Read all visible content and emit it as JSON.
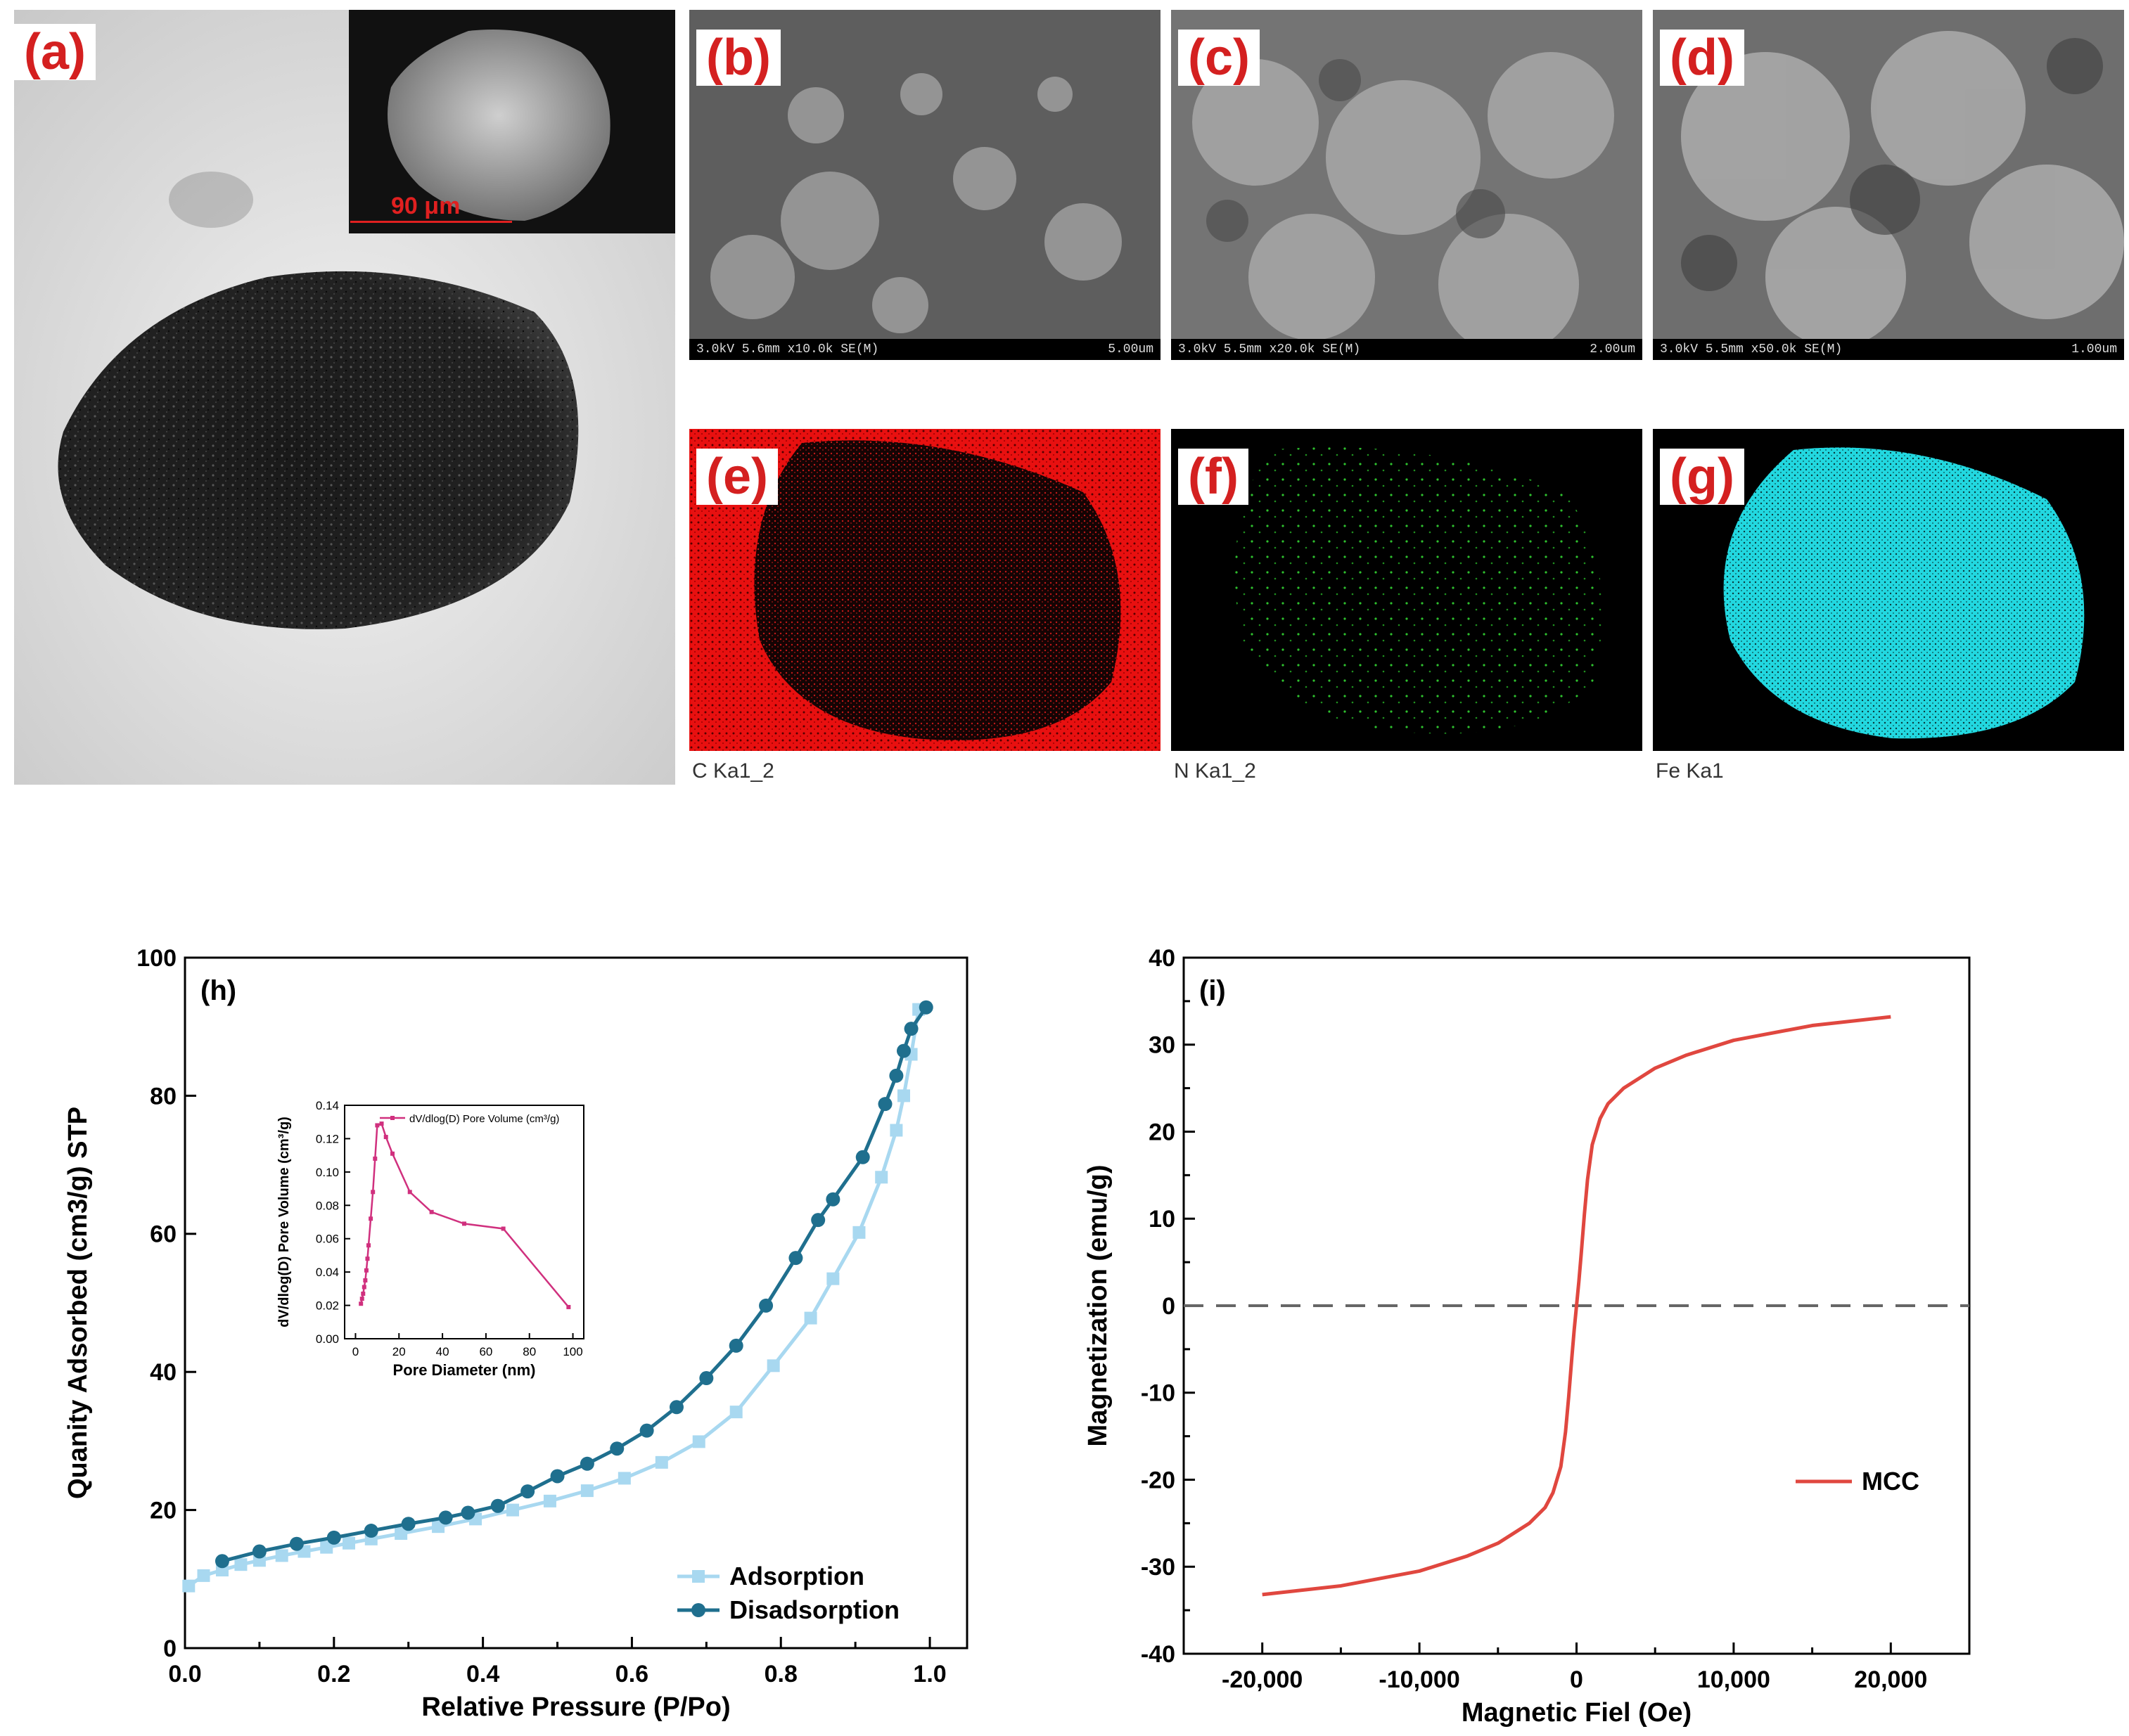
{
  "panels": {
    "a": {
      "label": "(a)",
      "inset_scale": "90 μm"
    },
    "b": {
      "label": "(b)",
      "sem_left": "3.0kV 5.6mm x10.0k SE(M)",
      "sem_right": "5.00um"
    },
    "c": {
      "label": "(c)",
      "sem_left": "3.0kV 5.5mm x20.0k SE(M)",
      "sem_right": "2.00um"
    },
    "d": {
      "label": "(d)",
      "sem_left": "3.0kV 5.5mm x50.0k SE(M)",
      "sem_right": "1.00um"
    },
    "e": {
      "label": "(e)",
      "caption": "C Ka1_2",
      "color": "#e81010"
    },
    "f": {
      "label": "(f)",
      "caption": "N Ka1_2",
      "color": "#2ec12e"
    },
    "g": {
      "label": "(g)",
      "caption": "Fe Ka1",
      "color": "#22d8e0"
    }
  },
  "chart_data": [
    {
      "panel_label": "(h)",
      "type": "line",
      "xlabel": "Relative Pressure (P/Po)",
      "ylabel": "Quanity Adsorbed (cm3/g) STP",
      "xlim": [
        0.0,
        1.05
      ],
      "ylim": [
        0,
        100
      ],
      "xticks": [
        "0.0",
        "0.2",
        "0.4",
        "0.6",
        "0.8",
        "1.0"
      ],
      "yticks": [
        "0",
        "20",
        "40",
        "60",
        "80",
        "100"
      ],
      "legend_position": "bottom-right",
      "series": [
        {
          "name": "Adsorption",
          "color": "#a8d8f0",
          "marker": "square",
          "x": [
            0.005,
            0.025,
            0.05,
            0.075,
            0.1,
            0.13,
            0.16,
            0.19,
            0.22,
            0.25,
            0.29,
            0.34,
            0.39,
            0.44,
            0.49,
            0.54,
            0.59,
            0.64,
            0.69,
            0.74,
            0.79,
            0.84,
            0.87,
            0.905,
            0.935,
            0.955,
            0.965,
            0.975,
            0.985
          ],
          "y": [
            9,
            10.5,
            11.3,
            12.1,
            12.7,
            13.4,
            14.0,
            14.6,
            15.2,
            15.8,
            16.6,
            17.6,
            18.7,
            20.0,
            21.3,
            22.8,
            24.6,
            26.9,
            29.9,
            34.2,
            40.9,
            47.8,
            53.5,
            60.2,
            68.2,
            75.0,
            80.0,
            86.0,
            92.5
          ]
        },
        {
          "name": "Disadsorption",
          "color": "#1f6f8e",
          "marker": "circle",
          "x": [
            0.05,
            0.1,
            0.15,
            0.2,
            0.25,
            0.3,
            0.35,
            0.38,
            0.42,
            0.46,
            0.5,
            0.54,
            0.58,
            0.62,
            0.66,
            0.7,
            0.74,
            0.78,
            0.82,
            0.85,
            0.87,
            0.91,
            0.94,
            0.955,
            0.965,
            0.975,
            0.995
          ],
          "y": [
            12.6,
            14.0,
            15.1,
            16.0,
            17.0,
            18.0,
            18.9,
            19.6,
            20.6,
            22.7,
            24.9,
            26.7,
            28.9,
            31.5,
            34.9,
            39.1,
            43.8,
            49.6,
            56.5,
            62.0,
            65.0,
            71.1,
            78.8,
            82.9,
            86.5,
            89.7,
            92.8
          ]
        }
      ],
      "inset": {
        "type": "line",
        "xlabel": "Pore Diameter (nm)",
        "ylabel": "dV/dlog(D) Pore Volume (cm³/g)",
        "xlim": [
          -5,
          105
        ],
        "ylim": [
          0,
          0.14
        ],
        "xticks": [
          "0",
          "20",
          "40",
          "60",
          "80",
          "100"
        ],
        "yticks": [
          "0.00",
          "0.02",
          "0.04",
          "0.06",
          "0.08",
          "0.10",
          "0.12",
          "0.14"
        ],
        "series": [
          {
            "name": "dV/dlog(D) Pore Volume (cm³/g)",
            "color": "#d0307e",
            "x": [
              2.5,
              3,
              3.5,
              4,
              4.5,
              5,
              5.5,
              6,
              7,
              8,
              9,
              10,
              12,
              14,
              17,
              25,
              35,
              50,
              68,
              98
            ],
            "y": [
              0.021,
              0.024,
              0.027,
              0.031,
              0.035,
              0.041,
              0.048,
              0.056,
              0.072,
              0.088,
              0.108,
              0.128,
              0.129,
              0.121,
              0.111,
              0.088,
              0.076,
              0.069,
              0.066,
              0.019
            ]
          }
        ]
      }
    },
    {
      "panel_label": "(i)",
      "type": "line",
      "xlabel": "Magnetic Fiel (Oe)",
      "ylabel": "Magnetization (emu/g)",
      "xlim": [
        -25000,
        25000
      ],
      "ylim": [
        -40,
        40
      ],
      "xticks": [
        "-20,000",
        "-10,000",
        "0",
        "10,000",
        "20,000"
      ],
      "yticks": [
        "-40",
        "-30",
        "-20",
        "-10",
        "0",
        "10",
        "20",
        "30",
        "40"
      ],
      "reference_line": {
        "y": 0,
        "style": "dashed"
      },
      "legend_position": "lower-right",
      "series": [
        {
          "name": "MCC",
          "color": "#e0473f",
          "x": [
            -20000,
            -15000,
            -10000,
            -7000,
            -5000,
            -3000,
            -2000,
            -1500,
            -1000,
            -700,
            -500,
            -300,
            -150,
            0,
            150,
            300,
            500,
            700,
            1000,
            1500,
            2000,
            3000,
            5000,
            7000,
            10000,
            15000,
            20000
          ],
          "y": [
            -33.2,
            -32.2,
            -30.5,
            -28.8,
            -27.3,
            -25.0,
            -23.2,
            -21.5,
            -18.5,
            -14.5,
            -10.5,
            -6.0,
            -2.8,
            0,
            2.8,
            6.0,
            10.5,
            14.5,
            18.5,
            21.5,
            23.2,
            25.0,
            27.3,
            28.8,
            30.5,
            32.2,
            33.2
          ]
        }
      ]
    }
  ]
}
